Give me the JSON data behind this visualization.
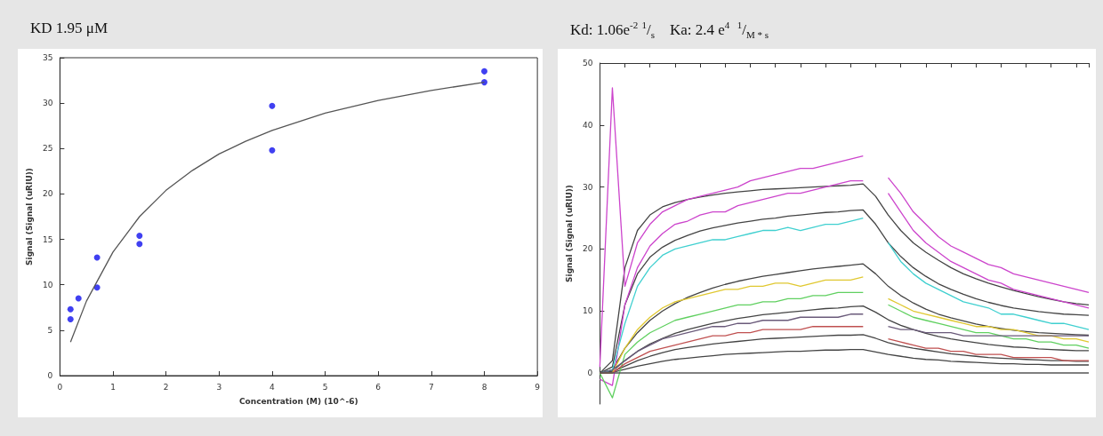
{
  "chart_data": [
    {
      "type": "scatter",
      "title": "KD 1.95 μM",
      "xlabel": "Concentration (M) (10^-6)",
      "ylabel": "Signal (Signal (uRIU))",
      "xlim": [
        0,
        9
      ],
      "xticks": [
        0,
        1,
        2,
        3,
        4,
        5,
        6,
        7,
        8,
        9
      ],
      "ylim": [
        0,
        35
      ],
      "yticks": [
        0,
        5,
        10,
        15,
        20,
        25,
        30,
        35
      ],
      "series": [
        {
          "color": "#1010ee",
          "marker": "circle",
          "x": [
            0.2,
            0.2,
            0.35,
            0.7,
            0.7,
            1.5,
            1.5,
            4,
            4,
            8,
            8
          ],
          "values": [
            7.3,
            6.2,
            8.5,
            13,
            9.7,
            15.4,
            14.5,
            29.7,
            24.8,
            33.5,
            32.3
          ]
        },
        {
          "type": "line",
          "color": "#555555",
          "x": [
            0.2,
            0.5,
            1,
            1.5,
            2,
            2.5,
            3,
            3.5,
            4,
            5,
            6,
            7,
            8
          ],
          "values": [
            3.7,
            8.2,
            13.6,
            17.5,
            20.4,
            22.6,
            24.4,
            25.8,
            27,
            28.9,
            30.3,
            31.4,
            32.3
          ]
        }
      ]
    },
    {
      "type": "line",
      "title": "Kd: 1.06e$^{-2}$ $^{1}$/$_{s}$    Ka: 2.4 e$^{4}$  $^{1}$/$_{M * s}$",
      "ylabel": "Signal (Signal (uRIU))",
      "categories": [
        null,
        null,
        null,
        null,
        null,
        null,
        null,
        null,
        null,
        null,
        null,
        null,
        null,
        null,
        null,
        null,
        null,
        null,
        null,
        null,
        null,
        null,
        null,
        null,
        null,
        null,
        null,
        null,
        null,
        null,
        null,
        null,
        null,
        null,
        null,
        null,
        null,
        null,
        null,
        null
      ],
      "ylim": [
        -5,
        50
      ],
      "yticks": [
        0,
        10,
        20,
        30,
        40,
        50
      ],
      "tick_labels": "y",
      "ref_lines": [
        {
          "axis": "y",
          "value": 0,
          "color": "#555555"
        }
      ],
      "series": [
        {
          "color": "#cc44cc",
          "values": [
            1,
            46,
            14,
            21,
            24,
            26,
            27,
            28,
            28.5,
            29,
            29.5,
            30,
            31,
            31.5,
            32,
            32.5,
            33,
            33,
            33.5,
            34,
            34.5,
            35,
            null,
            31.5,
            29,
            26,
            24,
            22,
            20.5,
            19.5,
            18.5,
            17.5,
            17,
            16,
            15.5,
            15,
            14.5,
            14,
            13.5,
            13
          ]
        },
        {
          "color": "#cc44cc",
          "values": [
            -1,
            -2,
            11,
            17,
            20.5,
            22.5,
            24,
            24.5,
            25.5,
            26,
            26,
            27,
            27.5,
            28,
            28.5,
            29,
            29,
            29.5,
            30,
            30.5,
            31,
            31,
            null,
            29,
            26,
            23,
            21,
            19.5,
            18,
            17,
            16,
            15,
            14.5,
            13.5,
            13,
            12.5,
            12,
            11.5,
            11,
            10.5
          ]
        },
        {
          "color": "#40d0d0",
          "values": [
            0,
            0.5,
            8,
            14,
            17,
            19,
            20,
            20.5,
            21,
            21.5,
            21.5,
            22,
            22.5,
            23,
            23,
            23.5,
            23,
            23.5,
            24,
            24,
            24.5,
            25,
            null,
            21,
            18,
            16,
            14.5,
            13.5,
            12.5,
            11.5,
            11,
            10.5,
            9.5,
            9.5,
            9,
            8.5,
            8,
            8,
            7.5,
            7
          ]
        },
        {
          "color": "#e0c830",
          "values": [
            0,
            0,
            4,
            7,
            9,
            10.5,
            11.5,
            12,
            12.5,
            13,
            13.5,
            13.5,
            14,
            14,
            14.5,
            14.5,
            14,
            14.5,
            15,
            15,
            15,
            15.5,
            null,
            12,
            11,
            10,
            9.5,
            9,
            8.5,
            8,
            7.5,
            7.5,
            7,
            7,
            6.5,
            6,
            6,
            5.5,
            5.5,
            5
          ]
        },
        {
          "color": "#60d060",
          "values": [
            0,
            -4,
            3,
            5,
            6.5,
            7.5,
            8.5,
            9,
            9.5,
            10,
            10.5,
            11,
            11,
            11.5,
            11.5,
            12,
            12,
            12.5,
            12.5,
            13,
            13,
            13,
            null,
            11,
            10,
            9,
            8.5,
            8,
            7.5,
            7,
            6.5,
            6.5,
            6,
            5.5,
            5.5,
            5,
            5,
            4.5,
            4.5,
            4
          ]
        },
        {
          "color": "#6a5a7a",
          "values": [
            0,
            0.5,
            2,
            3.5,
            4.5,
            5.5,
            6,
            6.5,
            7,
            7.5,
            7.5,
            8,
            8,
            8.5,
            8.5,
            8.5,
            9,
            9,
            9,
            9,
            9.5,
            9.5,
            null,
            7.5,
            7,
            7,
            6.5,
            6.5,
            6.5,
            6,
            6,
            6,
            6,
            6,
            6,
            6,
            6,
            6,
            6,
            6
          ]
        },
        {
          "color": "#c05050",
          "values": [
            0,
            0,
            1.5,
            2.5,
            3.5,
            4,
            4.5,
            5,
            5.5,
            6,
            6,
            6.5,
            6.5,
            7,
            7,
            7,
            7,
            7.5,
            7.5,
            7.5,
            7.5,
            7.5,
            null,
            5.5,
            5,
            4.5,
            4,
            4,
            3.5,
            3.5,
            3,
            3,
            3,
            2.5,
            2.5,
            2.5,
            2.5,
            2,
            2,
            2
          ]
        },
        {
          "color": "#444444",
          "values": [
            0,
            2,
            17,
            23,
            25.5,
            26.8,
            27.5,
            28,
            28.4,
            28.7,
            29,
            29.2,
            29.4,
            29.6,
            29.7,
            29.8,
            29.9,
            30,
            30.1,
            30.2,
            30.3,
            30.5,
            28.5,
            25.5,
            23,
            21,
            19.5,
            18.2,
            17,
            16,
            15.2,
            14.5,
            13.9,
            13.3,
            12.8,
            12.3,
            11.9,
            11.5,
            11.2,
            11
          ]
        },
        {
          "color": "#444444",
          "values": [
            0,
            1,
            11,
            16,
            18.7,
            20.3,
            21.4,
            22.2,
            22.9,
            23.4,
            23.8,
            24.2,
            24.5,
            24.8,
            25,
            25.3,
            25.5,
            25.7,
            25.9,
            26,
            26.2,
            26.3,
            24,
            21,
            18.8,
            17,
            15.6,
            14.4,
            13.5,
            12.7,
            12,
            11.4,
            10.9,
            10.5,
            10.2,
            9.9,
            9.7,
            9.5,
            9.4,
            9.3
          ]
        },
        {
          "color": "#444444",
          "values": [
            0,
            0.5,
            4,
            6.5,
            8.5,
            10,
            11.2,
            12.2,
            13,
            13.7,
            14.3,
            14.8,
            15.2,
            15.6,
            15.9,
            16.2,
            16.5,
            16.8,
            17,
            17.2,
            17.4,
            17.6,
            16,
            14,
            12.5,
            11.3,
            10.3,
            9.5,
            8.9,
            8.4,
            7.9,
            7.5,
            7.2,
            6.9,
            6.7,
            6.5,
            6.4,
            6.3,
            6.2,
            6.1
          ]
        },
        {
          "color": "#444444",
          "values": [
            0,
            0.3,
            2,
            3.5,
            4.7,
            5.6,
            6.4,
            7,
            7.5,
            8,
            8.4,
            8.8,
            9.1,
            9.4,
            9.6,
            9.8,
            10,
            10.2,
            10.4,
            10.5,
            10.7,
            10.8,
            9.8,
            8.6,
            7.7,
            7,
            6.4,
            5.9,
            5.5,
            5.2,
            4.9,
            4.6,
            4.4,
            4.2,
            4.1,
            3.9,
            3.8,
            3.7,
            3.6,
            3.6
          ]
        },
        {
          "color": "#444444",
          "values": [
            0,
            0.2,
            1.1,
            2,
            2.7,
            3.3,
            3.8,
            4.1,
            4.4,
            4.7,
            4.9,
            5.1,
            5.3,
            5.5,
            5.6,
            5.7,
            5.8,
            5.9,
            6,
            6.1,
            6.1,
            6.2,
            5.6,
            4.9,
            4.4,
            4,
            3.7,
            3.4,
            3.1,
            2.9,
            2.7,
            2.5,
            2.4,
            2.3,
            2.2,
            2.1,
            2,
            2,
            1.9,
            1.9
          ]
        },
        {
          "color": "#444444",
          "values": [
            0,
            0.1,
            0.6,
            1.1,
            1.5,
            1.9,
            2.2,
            2.4,
            2.6,
            2.8,
            3,
            3.1,
            3.2,
            3.3,
            3.4,
            3.5,
            3.5,
            3.6,
            3.7,
            3.7,
            3.8,
            3.8,
            3.4,
            3,
            2.7,
            2.4,
            2.2,
            2.1,
            1.9,
            1.8,
            1.7,
            1.6,
            1.5,
            1.5,
            1.4,
            1.4,
            1.3,
            1.3,
            1.3,
            1.3
          ]
        }
      ]
    }
  ]
}
